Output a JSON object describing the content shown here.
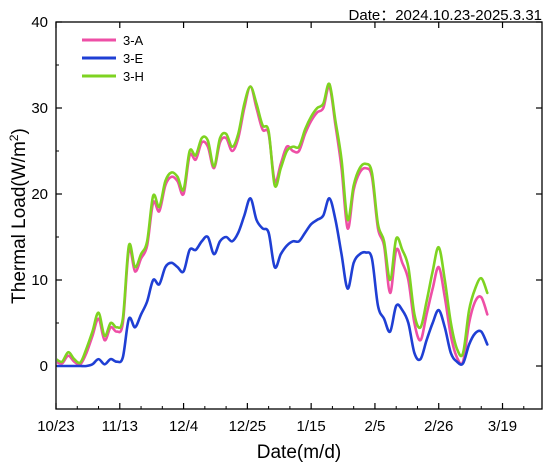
{
  "chart_data": {
    "type": "line",
    "date_range_label": "Date：2024.10.23-2025.3.31",
    "xlabel": "Date(m/d)",
    "ylabel": "Thermal Load(W/m²)",
    "ylabel_parts": {
      "main": "Thermal Load(W/m",
      "sup": "2",
      "close": ")"
    },
    "x_tick_labels": [
      "10/23",
      "11/13",
      "12/4",
      "12/25",
      "1/15",
      "2/5",
      "2/26",
      "3/19"
    ],
    "x_tick_values": [
      0,
      21,
      42,
      63,
      84,
      105,
      126,
      147
    ],
    "xlim": [
      0,
      160
    ],
    "ylim": [
      -5,
      40
    ],
    "y_ticks": [
      0,
      10,
      20,
      30,
      40
    ],
    "y_tick_labels": [
      "0",
      "10",
      "20",
      "30",
      "40"
    ],
    "legend_position": "top-left",
    "grid": false,
    "series": [
      {
        "name": "3-A",
        "color": "#ee4fa6",
        "points": [
          [
            0,
            0.5
          ],
          [
            2,
            0.3
          ],
          [
            4,
            1.2
          ],
          [
            6,
            0.5
          ],
          [
            8,
            0.2
          ],
          [
            10,
            1.5
          ],
          [
            12,
            3.5
          ],
          [
            14,
            5.5
          ],
          [
            16,
            3
          ],
          [
            18,
            4.5
          ],
          [
            20,
            4
          ],
          [
            22,
            5
          ],
          [
            24,
            13.5
          ],
          [
            26,
            11
          ],
          [
            28,
            12.5
          ],
          [
            30,
            14
          ],
          [
            32,
            19
          ],
          [
            34,
            18
          ],
          [
            36,
            21
          ],
          [
            38,
            22
          ],
          [
            40,
            21.5
          ],
          [
            42,
            20
          ],
          [
            44,
            24.5
          ],
          [
            46,
            24
          ],
          [
            48,
            26
          ],
          [
            50,
            25.5
          ],
          [
            52,
            23
          ],
          [
            54,
            26
          ],
          [
            56,
            26.5
          ],
          [
            58,
            25
          ],
          [
            60,
            26.5
          ],
          [
            62,
            30
          ],
          [
            64,
            32.5
          ],
          [
            66,
            30
          ],
          [
            68,
            27.5
          ],
          [
            70,
            27
          ],
          [
            72,
            21.5
          ],
          [
            74,
            23.5
          ],
          [
            76,
            25.5
          ],
          [
            78,
            25
          ],
          [
            80,
            25
          ],
          [
            82,
            27
          ],
          [
            84,
            28.5
          ],
          [
            86,
            29.5
          ],
          [
            88,
            30
          ],
          [
            90,
            32.5
          ],
          [
            92,
            28
          ],
          [
            94,
            23
          ],
          [
            96,
            16
          ],
          [
            98,
            20.5
          ],
          [
            100,
            22.5
          ],
          [
            102,
            23
          ],
          [
            104,
            22
          ],
          [
            106,
            16
          ],
          [
            108,
            14
          ],
          [
            110,
            8.5
          ],
          [
            112,
            13.5
          ],
          [
            114,
            12
          ],
          [
            116,
            10
          ],
          [
            118,
            5
          ],
          [
            120,
            3
          ],
          [
            122,
            6
          ],
          [
            124,
            9
          ],
          [
            126,
            11.5
          ],
          [
            128,
            8
          ],
          [
            130,
            3.5
          ],
          [
            132,
            1
          ],
          [
            134,
            0.5
          ],
          [
            136,
            5
          ],
          [
            138,
            7.5
          ],
          [
            140,
            8
          ],
          [
            142,
            6
          ]
        ]
      },
      {
        "name": "3-E",
        "color": "#1f3fd4",
        "points": [
          [
            0,
            0
          ],
          [
            2,
            0
          ],
          [
            4,
            0
          ],
          [
            6,
            0
          ],
          [
            8,
            0
          ],
          [
            10,
            0
          ],
          [
            12,
            0.2
          ],
          [
            14,
            0.8
          ],
          [
            16,
            0.2
          ],
          [
            18,
            0.8
          ],
          [
            20,
            0.5
          ],
          [
            22,
            1
          ],
          [
            24,
            5.5
          ],
          [
            26,
            4.5
          ],
          [
            28,
            6
          ],
          [
            30,
            7.5
          ],
          [
            32,
            10
          ],
          [
            34,
            9.5
          ],
          [
            36,
            11.5
          ],
          [
            38,
            12
          ],
          [
            40,
            11.5
          ],
          [
            42,
            11
          ],
          [
            44,
            13.5
          ],
          [
            46,
            13.5
          ],
          [
            48,
            14.5
          ],
          [
            50,
            15
          ],
          [
            52,
            13
          ],
          [
            54,
            14.5
          ],
          [
            56,
            15
          ],
          [
            58,
            14.5
          ],
          [
            60,
            15.5
          ],
          [
            62,
            17.5
          ],
          [
            64,
            19.5
          ],
          [
            66,
            17
          ],
          [
            68,
            16
          ],
          [
            70,
            15.5
          ],
          [
            72,
            11.5
          ],
          [
            74,
            13
          ],
          [
            76,
            14
          ],
          [
            78,
            14.5
          ],
          [
            80,
            14.5
          ],
          [
            82,
            15.5
          ],
          [
            84,
            16.5
          ],
          [
            86,
            17
          ],
          [
            88,
            17.5
          ],
          [
            90,
            19.5
          ],
          [
            92,
            17
          ],
          [
            94,
            13
          ],
          [
            96,
            9
          ],
          [
            98,
            12
          ],
          [
            100,
            13
          ],
          [
            102,
            13.2
          ],
          [
            104,
            12.5
          ],
          [
            106,
            7
          ],
          [
            108,
            5.5
          ],
          [
            110,
            4
          ],
          [
            112,
            7
          ],
          [
            114,
            6.5
          ],
          [
            116,
            5
          ],
          [
            118,
            1.5
          ],
          [
            120,
            0.8
          ],
          [
            122,
            3
          ],
          [
            124,
            5
          ],
          [
            126,
            6.5
          ],
          [
            128,
            4.5
          ],
          [
            130,
            1.5
          ],
          [
            132,
            0.5
          ],
          [
            134,
            0.3
          ],
          [
            136,
            2.5
          ],
          [
            138,
            3.8
          ],
          [
            140,
            4
          ],
          [
            142,
            2.5
          ]
        ]
      },
      {
        "name": "3-H",
        "color": "#7ed321",
        "points": [
          [
            0,
            0.8
          ],
          [
            2,
            0.5
          ],
          [
            4,
            1.6
          ],
          [
            6,
            0.8
          ],
          [
            8,
            0.4
          ],
          [
            10,
            2
          ],
          [
            12,
            4
          ],
          [
            14,
            6.2
          ],
          [
            16,
            3.5
          ],
          [
            18,
            5
          ],
          [
            20,
            4.5
          ],
          [
            22,
            5.5
          ],
          [
            24,
            14
          ],
          [
            26,
            11.5
          ],
          [
            28,
            13
          ],
          [
            30,
            14.5
          ],
          [
            32,
            19.8
          ],
          [
            34,
            18.5
          ],
          [
            36,
            21.5
          ],
          [
            38,
            22.5
          ],
          [
            40,
            22
          ],
          [
            42,
            20.5
          ],
          [
            44,
            25
          ],
          [
            46,
            24.5
          ],
          [
            48,
            26.5
          ],
          [
            50,
            26.2
          ],
          [
            52,
            23.2
          ],
          [
            54,
            26.5
          ],
          [
            56,
            27
          ],
          [
            58,
            25.5
          ],
          [
            60,
            27
          ],
          [
            62,
            30.5
          ],
          [
            64,
            32.5
          ],
          [
            66,
            30.5
          ],
          [
            68,
            28
          ],
          [
            70,
            27.3
          ],
          [
            72,
            21
          ],
          [
            74,
            23
          ],
          [
            76,
            25
          ],
          [
            78,
            25.5
          ],
          [
            80,
            25.5
          ],
          [
            82,
            27.5
          ],
          [
            84,
            29
          ],
          [
            86,
            30
          ],
          [
            88,
            30.5
          ],
          [
            90,
            32.8
          ],
          [
            92,
            28.5
          ],
          [
            94,
            24
          ],
          [
            96,
            17
          ],
          [
            98,
            21
          ],
          [
            100,
            23
          ],
          [
            102,
            23.5
          ],
          [
            104,
            22.5
          ],
          [
            106,
            16.5
          ],
          [
            108,
            14.5
          ],
          [
            110,
            10
          ],
          [
            112,
            14.8
          ],
          [
            114,
            13.5
          ],
          [
            116,
            11.5
          ],
          [
            118,
            6
          ],
          [
            120,
            4.5
          ],
          [
            122,
            7.5
          ],
          [
            124,
            11
          ],
          [
            126,
            13.8
          ],
          [
            128,
            10
          ],
          [
            130,
            5
          ],
          [
            132,
            2
          ],
          [
            134,
            1.5
          ],
          [
            136,
            6.5
          ],
          [
            138,
            9
          ],
          [
            140,
            10.2
          ],
          [
            142,
            8.5
          ]
        ]
      }
    ]
  }
}
